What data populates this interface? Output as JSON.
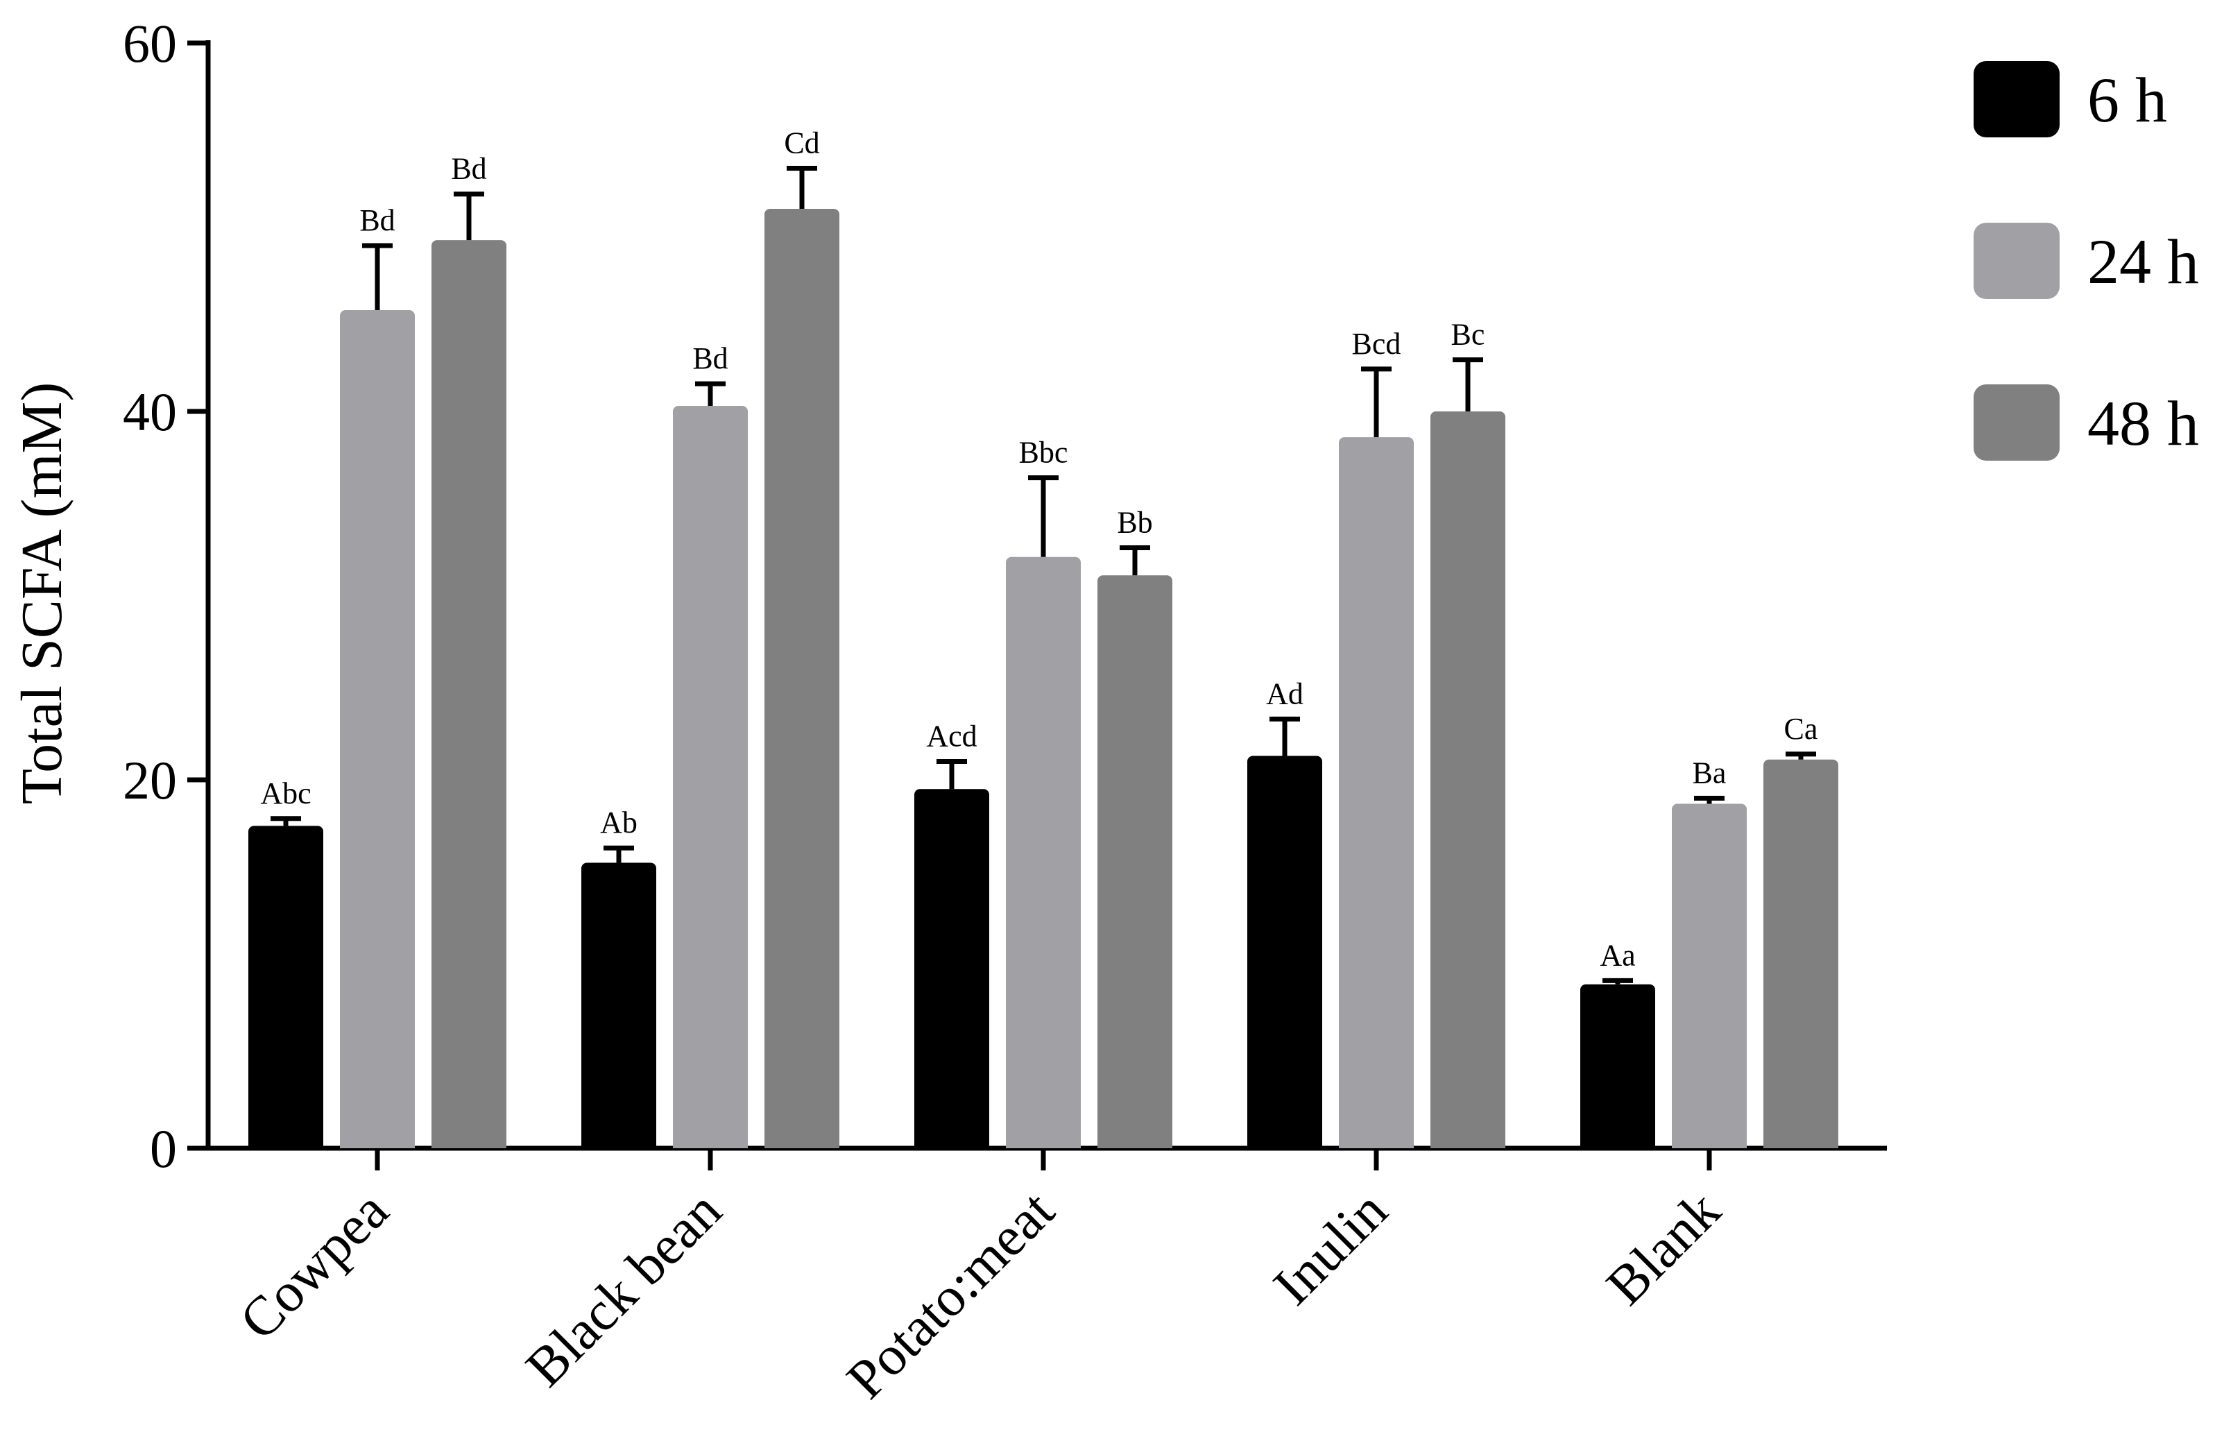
{
  "chart_data": {
    "type": "bar",
    "title": "",
    "xlabel": "",
    "ylabel": "Total SCFA (mM)",
    "ylim": [
      0,
      60
    ],
    "yticks": [
      0,
      20,
      40,
      60
    ],
    "grid": false,
    "legend_position": "top-right",
    "categories": [
      "Cowpea",
      "Black bean",
      "Potato:meat",
      "Inulin",
      "Blank"
    ],
    "series": [
      {
        "name": "6 h",
        "color": "#000000",
        "values": [
          17.5,
          15.5,
          19.5,
          21.3,
          8.9
        ],
        "errors": [
          0.4,
          0.8,
          1.5,
          2.0,
          0.2
        ],
        "labels": [
          "Abc",
          "Ab",
          "Acd",
          "Ad",
          "Aa"
        ]
      },
      {
        "name": "24 h",
        "color": "#a1a1a5",
        "values": [
          45.5,
          40.3,
          32.1,
          38.6,
          18.7
        ],
        "errors": [
          3.5,
          1.2,
          4.3,
          3.7,
          0.3
        ],
        "labels": [
          "Bd",
          "Bd",
          "Bbc",
          "Bcd",
          "Ba"
        ]
      },
      {
        "name": "48 h",
        "color": "#808080",
        "values": [
          49.3,
          51.0,
          31.1,
          40.0,
          21.1
        ],
        "errors": [
          2.5,
          2.2,
          1.5,
          2.8,
          0.3
        ],
        "labels": [
          "Bd",
          "Cd",
          "Bb",
          "Bc",
          "Ca"
        ]
      }
    ]
  }
}
